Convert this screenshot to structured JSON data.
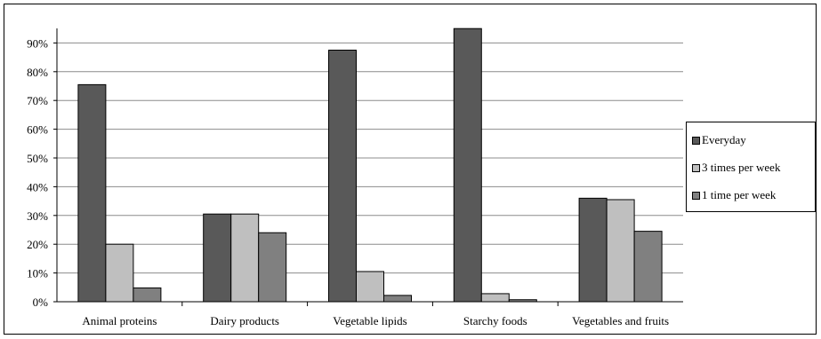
{
  "chart_data": {
    "type": "bar",
    "title": "",
    "xlabel": "",
    "ylabel": "",
    "categories": [
      "Animal proteins",
      "Dairy products",
      "Vegetable lipids",
      "Starchy foods",
      "Vegetables and fruits"
    ],
    "series": [
      {
        "name": "Everyday",
        "color": "#595959",
        "values": [
          75.5,
          30.5,
          87.5,
          95.5,
          36.0
        ]
      },
      {
        "name": "3 times per week",
        "color": "#bfbfbf",
        "values": [
          20.0,
          30.5,
          10.5,
          2.8,
          35.5
        ]
      },
      {
        "name": "1 time per week",
        "color": "#808080",
        "values": [
          4.8,
          24.0,
          2.2,
          0.7,
          24.5
        ]
      }
    ],
    "ylim": [
      0,
      95
    ],
    "yticks": [
      "0%",
      "10%",
      "20%",
      "30%",
      "40%",
      "50%",
      "60%",
      "70%",
      "80%",
      "90%"
    ],
    "grid": true,
    "legend_position": "right"
  }
}
